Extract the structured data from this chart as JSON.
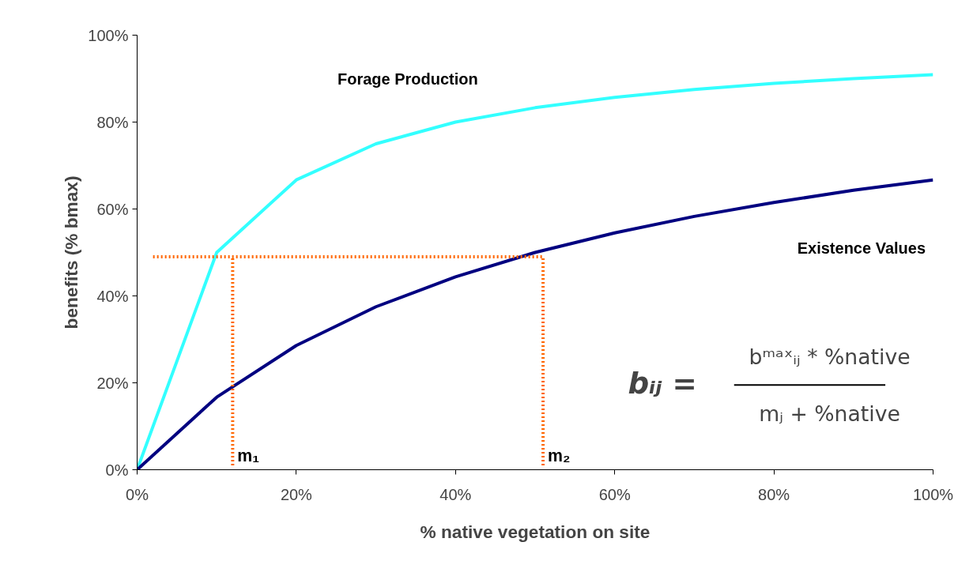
{
  "chart_data": {
    "type": "line",
    "xlabel": "% native vegetation on site",
    "ylabel": "benefits (% bmax)",
    "x": [
      0,
      10,
      20,
      30,
      40,
      50,
      60,
      70,
      80,
      90,
      100
    ],
    "series": [
      {
        "name": "Forage Production",
        "color": "#33ffff",
        "values": [
          0,
          50,
          66.7,
          75,
          80,
          83.3,
          85.7,
          87.5,
          88.9,
          90,
          90.9
        ]
      },
      {
        "name": "Existence Values",
        "color": "#000080",
        "values": [
          0,
          16.7,
          28.6,
          37.5,
          44.4,
          50,
          54.5,
          58.3,
          61.5,
          64.3,
          66.7
        ]
      },
      {
        "color": "#ff6600",
        "line_style": "dotted",
        "x": [
          2,
          51
        ],
        "values": [
          49,
          49
        ]
      },
      {
        "name": "m₁",
        "color": "#ff6600",
        "line_style": "dotted",
        "x": [
          12,
          12
        ],
        "values": [
          1,
          49
        ]
      },
      {
        "name": "m₂",
        "color": "#ff6600",
        "line_style": "dotted",
        "x": [
          51,
          51
        ],
        "values": [
          1,
          49
        ]
      }
    ],
    "xlim": [
      0,
      100
    ],
    "ylim": [
      0,
      100
    ],
    "xticks": [
      {
        "value": 0,
        "label": "0%"
      },
      {
        "value": 20,
        "label": "20%"
      },
      {
        "value": 40,
        "label": "40%"
      },
      {
        "value": 60,
        "label": "60%"
      },
      {
        "value": 80,
        "label": "80%"
      },
      {
        "value": 100,
        "label": "100%"
      }
    ],
    "yticks": [
      {
        "value": 0,
        "label": "0%"
      },
      {
        "value": 20,
        "label": "20%"
      },
      {
        "value": 40,
        "label": "40%"
      },
      {
        "value": 60,
        "label": "60%"
      },
      {
        "value": 80,
        "label": "80%"
      },
      {
        "value": 100,
        "label": "100%"
      }
    ],
    "annotations": [
      "bᵢⱼ =",
      "bᵐᵃˣᵢⱼ * %native",
      "mⱼ + %native"
    ],
    "grid": false,
    "legend": false,
    "marker": "none",
    "line_style": "solid"
  }
}
